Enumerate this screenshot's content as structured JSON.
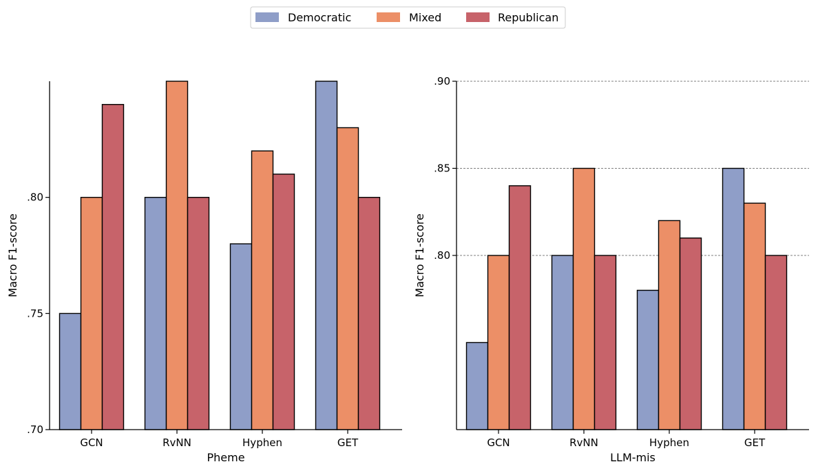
{
  "legend": {
    "items": [
      {
        "label": "Democratic",
        "color": "#8f9ec8"
      },
      {
        "label": "Mixed",
        "color": "#ec8f67"
      },
      {
        "label": "Republican",
        "color": "#c7636a"
      }
    ]
  },
  "chart_data": [
    {
      "type": "bar",
      "xlabel": "Pheme",
      "ylabel": "Macro F1-score",
      "categories": [
        "GCN",
        "RvNN",
        "Hyphen",
        "GET"
      ],
      "ylim": [
        0.7,
        0.85
      ],
      "yticks": [
        0.7,
        0.75,
        0.8
      ],
      "ytick_labels": [
        ".70",
        ".75",
        ".80"
      ],
      "grid": false,
      "series": [
        {
          "name": "Democratic",
          "values": [
            0.75,
            0.8,
            0.78,
            0.85
          ]
        },
        {
          "name": "Mixed",
          "values": [
            0.8,
            0.85,
            0.82,
            0.83
          ]
        },
        {
          "name": "Republican",
          "values": [
            0.84,
            0.8,
            0.81,
            0.8
          ]
        }
      ]
    },
    {
      "type": "bar",
      "xlabel": "LLM-mis",
      "ylabel": "Macro F1-score",
      "categories": [
        "GCN",
        "RvNN",
        "Hyphen",
        "GET"
      ],
      "ylim": [
        0.7,
        0.9
      ],
      "yticks": [
        0.8,
        0.85,
        0.9
      ],
      "ytick_labels": [
        ".80",
        ".85",
        ".90"
      ],
      "grid": true,
      "series": [
        {
          "name": "Democratic",
          "values": [
            0.75,
            0.8,
            0.78,
            0.85
          ]
        },
        {
          "name": "Mixed",
          "values": [
            0.8,
            0.85,
            0.82,
            0.83
          ]
        },
        {
          "name": "Republican",
          "values": [
            0.84,
            0.8,
            0.81,
            0.8
          ]
        }
      ]
    }
  ]
}
